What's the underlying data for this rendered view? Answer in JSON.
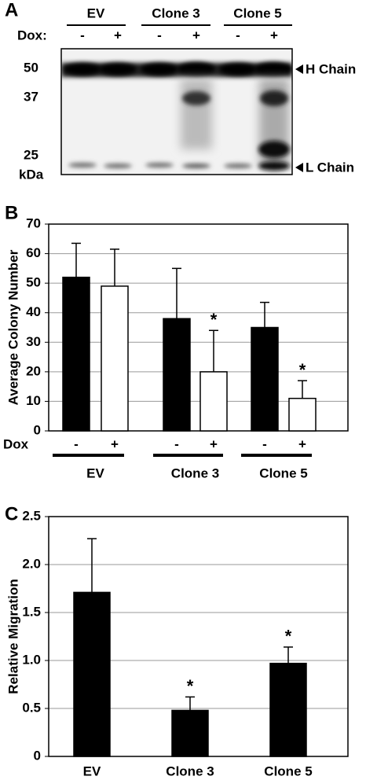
{
  "panel_a": {
    "panel": "A",
    "lane_groups": [
      "EV",
      "Clone 3",
      "Clone 5"
    ],
    "dox_label": "Dox:",
    "lanes": [
      "-",
      "+",
      "-",
      "+",
      "-",
      "+"
    ],
    "markers": [
      "50",
      "37",
      "25"
    ],
    "unit": "kDa",
    "bands": [
      "H Chain",
      "L Chain"
    ]
  },
  "chart_data": [
    {
      "type": "bar",
      "panel": "B",
      "ylabel": "Average Colony Number",
      "xlabel": "Dox",
      "categories": [
        "-",
        "+",
        "-",
        "+",
        "-",
        "+"
      ],
      "groups": [
        "EV",
        "Clone 3",
        "Clone 5"
      ],
      "values": [
        52,
        49,
        38,
        20,
        35,
        11
      ],
      "errors": [
        11.5,
        12.5,
        17,
        14,
        8.5,
        6
      ],
      "colors": [
        "#000000",
        "#ffffff",
        "#000000",
        "#ffffff",
        "#000000",
        "#ffffff"
      ],
      "annotations": [
        null,
        null,
        null,
        "*",
        null,
        "*"
      ],
      "ylim": [
        0,
        70
      ],
      "yticks": [
        0,
        10,
        20,
        30,
        40,
        50,
        60,
        70
      ],
      "grid": true
    },
    {
      "type": "bar",
      "panel": "C",
      "ylabel": "Relative Migration",
      "categories": [
        "EV",
        "Clone 3",
        "Clone 5"
      ],
      "values": [
        1.71,
        0.48,
        0.97
      ],
      "errors": [
        0.56,
        0.14,
        0.17
      ],
      "colors": [
        "#000000",
        "#000000",
        "#000000"
      ],
      "annotations": [
        null,
        "*",
        "*"
      ],
      "ylim": [
        0,
        2.5
      ],
      "yticks": [
        0,
        0.5,
        {
          "value": 1,
          "label": "1.0"
        },
        1.5,
        {
          "value": 2,
          "label": "2.0"
        },
        2.5
      ],
      "grid": true
    }
  ]
}
